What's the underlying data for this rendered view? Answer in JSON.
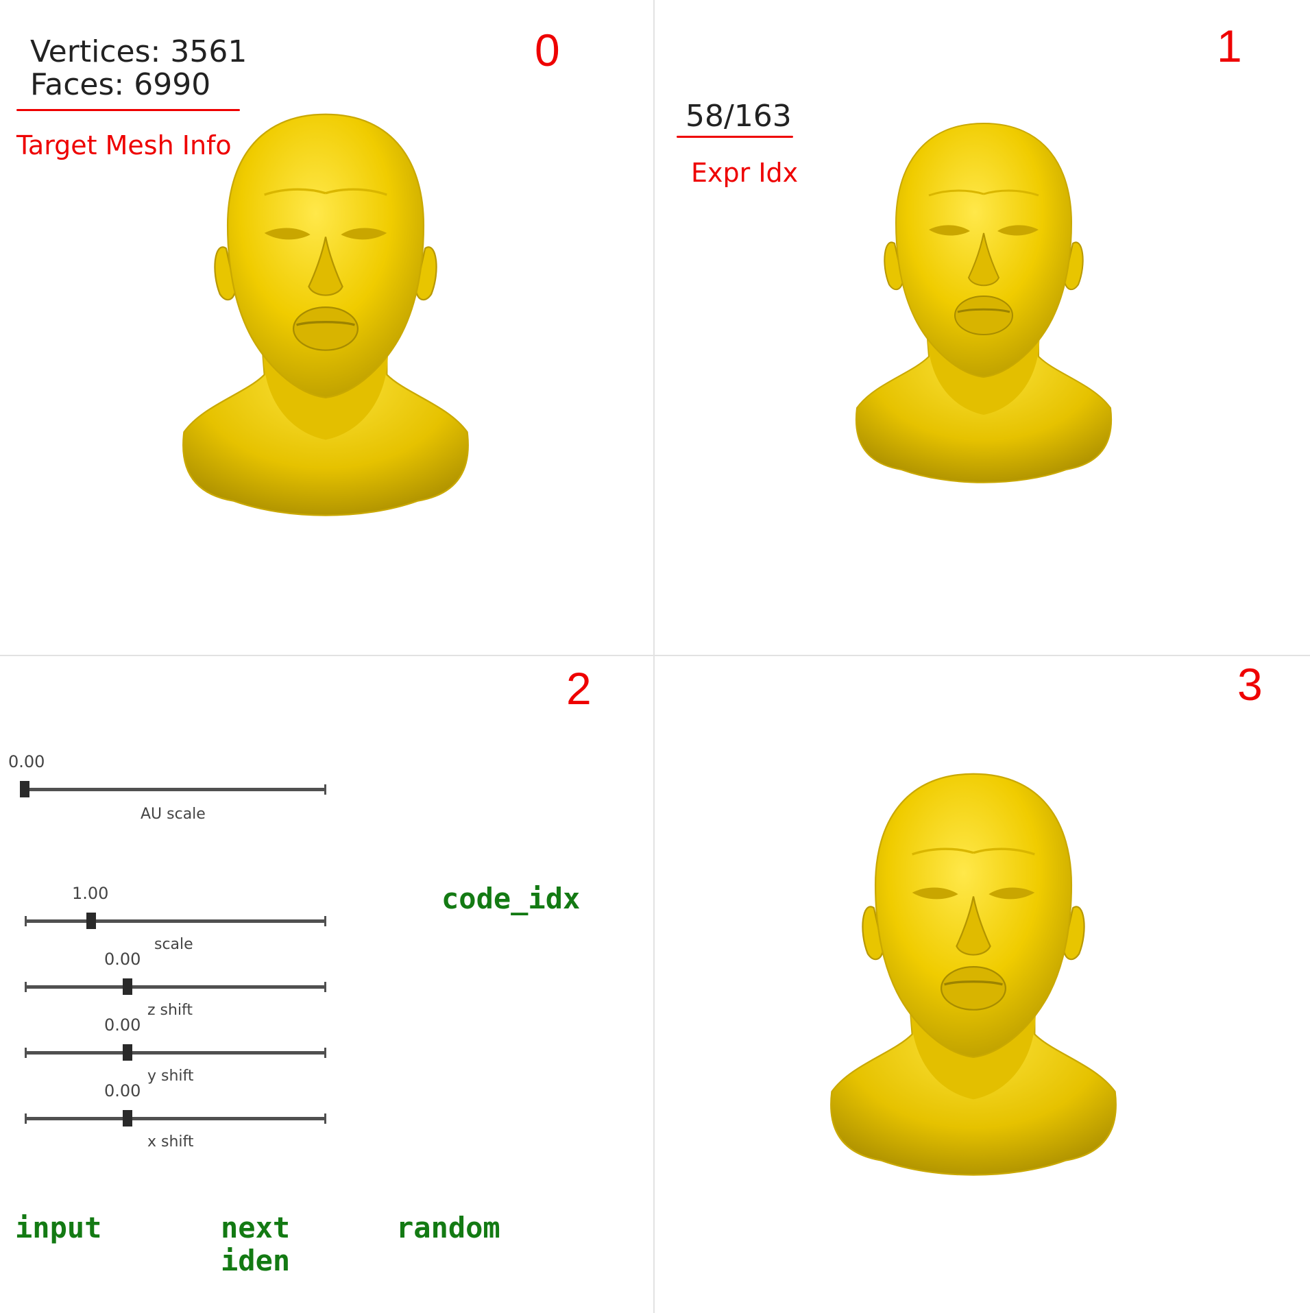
{
  "panels": [
    {
      "index": "0"
    },
    {
      "index": "1"
    },
    {
      "index": "2"
    },
    {
      "index": "3"
    }
  ],
  "mesh_info": {
    "vertices_label": "Vertices:",
    "vertices_value": "3561",
    "faces_label": "Faces:",
    "faces_value": "6990",
    "annotation": "Target Mesh Info"
  },
  "expression": {
    "index_text": "58/163",
    "annotation": "Expr Idx"
  },
  "sliders": [
    {
      "id": "au_scale",
      "label": "AU scale",
      "value_text": "0.00",
      "fraction": 0.0
    },
    {
      "id": "scale",
      "label": "scale",
      "value_text": "1.00",
      "fraction": 0.22
    },
    {
      "id": "z_shift",
      "label": "z shift",
      "value_text": "0.00",
      "fraction": 0.34
    },
    {
      "id": "y_shift",
      "label": "y shift",
      "value_text": "0.00",
      "fraction": 0.34
    },
    {
      "id": "x_shift",
      "label": "x shift",
      "value_text": "0.00",
      "fraction": 0.34
    }
  ],
  "buttons": {
    "code_idx": "code_idx",
    "input": "input",
    "next_iden_line1": "next",
    "next_iden_line2": "iden",
    "random": "random"
  },
  "colors": {
    "mesh_yellow": "#f2d000",
    "mesh_shadow": "#b89d00",
    "annotation_red": "#ee0000",
    "button_green": "#137a13",
    "divider": "#e2e2e2"
  },
  "icons": [
    "face-mesh-render"
  ]
}
